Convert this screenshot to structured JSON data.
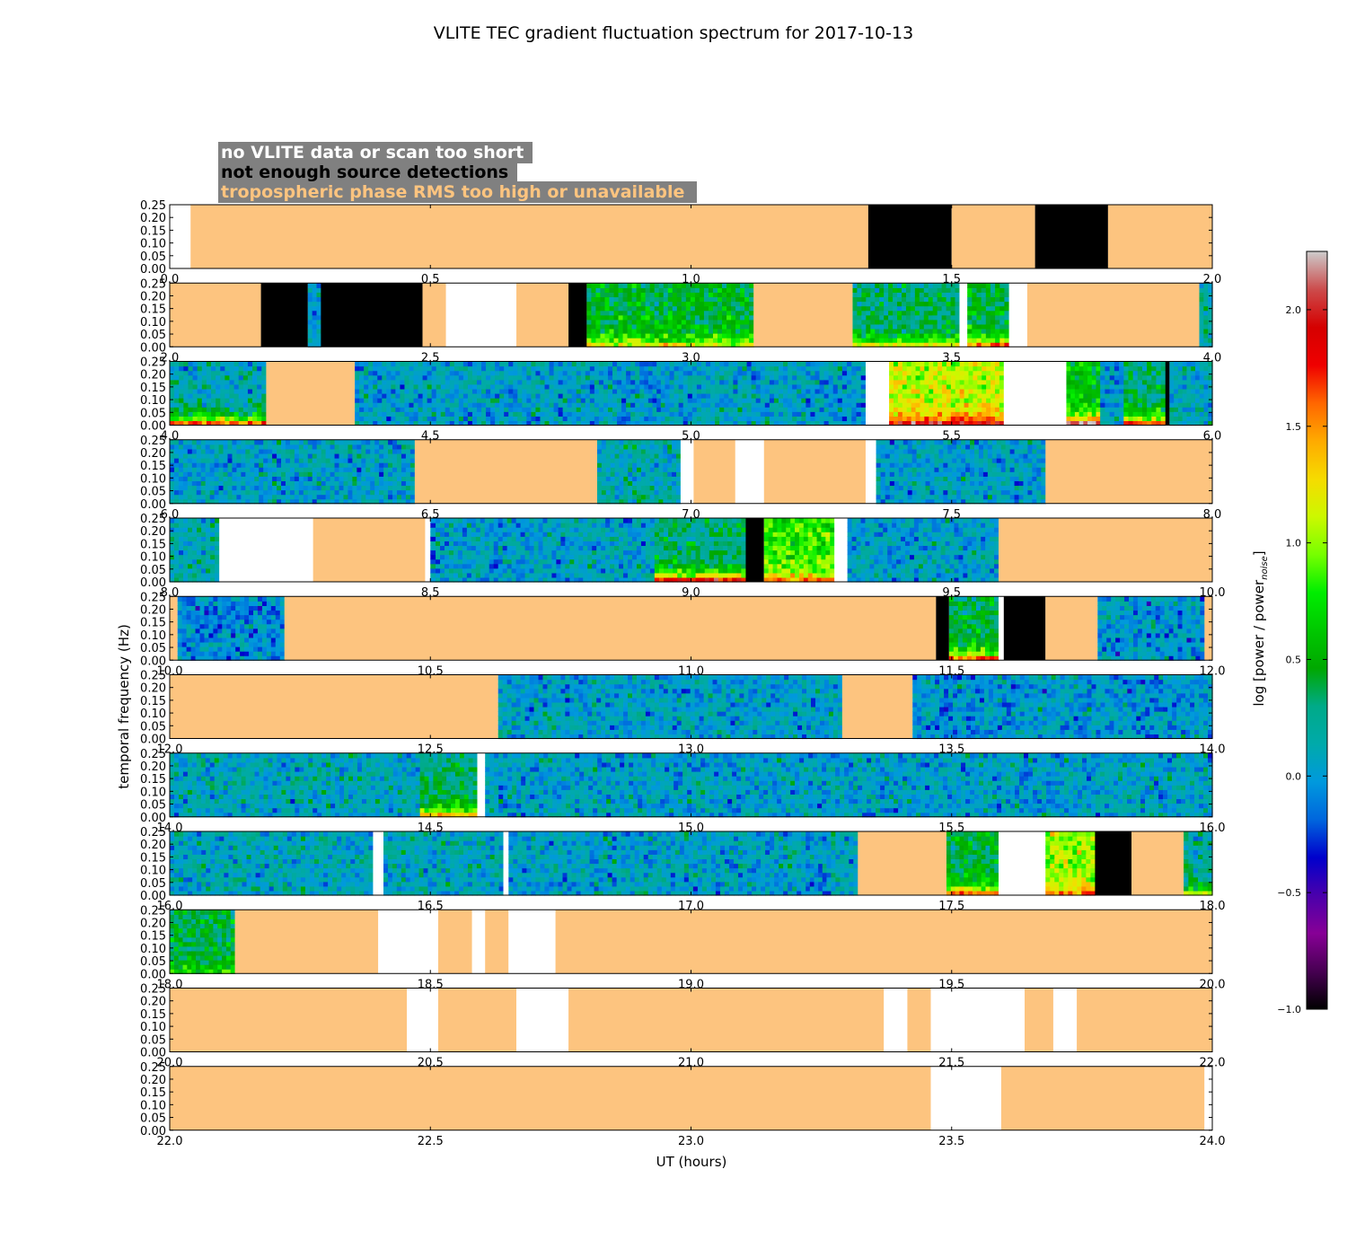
{
  "chart_data": {
    "type": "heatmap",
    "title": "VLITE TEC gradient fluctuation spectrum for 2017-10-13",
    "xlabel": "UT (hours)",
    "ylabel": "temporal frequency (Hz)",
    "ylim": [
      0,
      0.25
    ],
    "yticks": [
      "0.00",
      "0.05",
      "0.10",
      "0.15",
      "0.20",
      "0.25"
    ],
    "grid": false,
    "legend": {
      "placement": "top-left",
      "entries": [
        {
          "label": "no VLITE data or scan too short",
          "color": "#ffffff"
        },
        {
          "label": "not enough source detections",
          "color": "#000000"
        },
        {
          "label": "tropospheric phase RMS too high or unavailable",
          "color": "#fdc47f"
        }
      ]
    },
    "colorbar": {
      "label_main": "log [power / power",
      "label_sub": "noise",
      "label_close": "]",
      "range": [
        -1.0,
        2.25
      ],
      "ticks": [
        "−1.0",
        "−0.5",
        "0.0",
        "0.5",
        "1.0",
        "1.5",
        "2.0"
      ],
      "tick_values": [
        -1.0,
        -0.5,
        0.0,
        0.5,
        1.0,
        1.5,
        2.0
      ],
      "colormap": "nipy_spectral"
    },
    "colors": {
      "no_data": "#ffffff",
      "no_detections": "#000000",
      "troposphere": "#fdc47f",
      "low_power": "#1493d2"
    },
    "panels": [
      {
        "xrange": [
          0,
          2
        ],
        "xticks": [
          "0.0",
          "0.5",
          "1.0",
          "1.5",
          "2.0"
        ],
        "segments": [
          {
            "t0": 0.0,
            "t1": 0.04,
            "kind": "nodata"
          },
          {
            "t0": 0.04,
            "t1": 1.34,
            "kind": "tropo"
          },
          {
            "t0": 1.34,
            "t1": 1.5,
            "kind": "nodet"
          },
          {
            "t0": 1.5,
            "t1": 1.66,
            "kind": "tropo"
          },
          {
            "t0": 1.66,
            "t1": 1.8,
            "kind": "nodet"
          },
          {
            "t0": 1.8,
            "t1": 2.0,
            "kind": "tropo"
          }
        ]
      },
      {
        "xrange": [
          2,
          4
        ],
        "xticks": [
          "2.0",
          "2.5",
          "3.0",
          "3.5",
          "4.0"
        ],
        "segments": [
          {
            "t0": 2.0,
            "t1": 2.175,
            "kind": "tropo"
          },
          {
            "t0": 2.175,
            "t1": 2.265,
            "kind": "nodet"
          },
          {
            "t0": 2.265,
            "t1": 2.29,
            "kind": "data",
            "level": 0.0
          },
          {
            "t0": 2.29,
            "t1": 2.485,
            "kind": "nodet"
          },
          {
            "t0": 2.485,
            "t1": 2.53,
            "kind": "tropo"
          },
          {
            "t0": 2.53,
            "t1": 2.665,
            "kind": "nodata"
          },
          {
            "t0": 2.665,
            "t1": 2.765,
            "kind": "tropo"
          },
          {
            "t0": 2.765,
            "t1": 2.8,
            "kind": "nodet"
          },
          {
            "t0": 2.8,
            "t1": 3.12,
            "kind": "data",
            "level": 0.45,
            "bottom": 1.2
          },
          {
            "t0": 3.12,
            "t1": 3.31,
            "kind": "tropo"
          },
          {
            "t0": 3.31,
            "t1": 3.515,
            "kind": "data",
            "level": 0.3,
            "bottom": 1.1
          },
          {
            "t0": 3.515,
            "t1": 3.53,
            "kind": "nodata"
          },
          {
            "t0": 3.53,
            "t1": 3.61,
            "kind": "data",
            "level": 0.4,
            "bottom": 1.5
          },
          {
            "t0": 3.61,
            "t1": 3.645,
            "kind": "nodata"
          },
          {
            "t0": 3.645,
            "t1": 3.975,
            "kind": "tropo"
          },
          {
            "t0": 3.975,
            "t1": 4.0,
            "kind": "data",
            "level": 0.2
          }
        ]
      },
      {
        "xrange": [
          4,
          6
        ],
        "xticks": [
          "4.0",
          "4.5",
          "5.0",
          "5.5",
          "6.0"
        ],
        "segments": [
          {
            "t0": 4.0,
            "t1": 4.185,
            "kind": "data",
            "level": 0.1,
            "bottom": 1.6
          },
          {
            "t0": 4.185,
            "t1": 4.355,
            "kind": "tropo"
          },
          {
            "t0": 4.355,
            "t1": 4.91,
            "kind": "data",
            "level": 0.05
          },
          {
            "t0": 4.91,
            "t1": 4.95,
            "kind": "data",
            "level": 0.0
          },
          {
            "t0": 4.95,
            "t1": 5.29,
            "kind": "data",
            "level": 0.05
          },
          {
            "t0": 5.29,
            "t1": 5.335,
            "kind": "data",
            "level": 0.0
          },
          {
            "t0": 5.335,
            "t1": 5.38,
            "kind": "nodata"
          },
          {
            "t0": 5.38,
            "t1": 5.6,
            "kind": "data",
            "level": 1.1,
            "bottom": 1.9
          },
          {
            "t0": 5.6,
            "t1": 5.72,
            "kind": "nodata"
          },
          {
            "t0": 5.72,
            "t1": 5.785,
            "kind": "data",
            "level": 0.6,
            "bottom": 2.1
          },
          {
            "t0": 5.785,
            "t1": 5.83,
            "kind": "data",
            "level": 0.0
          },
          {
            "t0": 5.83,
            "t1": 5.91,
            "kind": "data",
            "level": 0.3,
            "bottom": 1.7
          },
          {
            "t0": 5.91,
            "t1": 5.918,
            "kind": "nodet"
          },
          {
            "t0": 5.918,
            "t1": 6.0,
            "kind": "data",
            "level": 0.1
          }
        ]
      },
      {
        "xrange": [
          6,
          8
        ],
        "xticks": [
          "6.0",
          "6.5",
          "7.0",
          "7.5",
          "8.0"
        ],
        "segments": [
          {
            "t0": 6.0,
            "t1": 6.47,
            "kind": "data",
            "level": 0.05
          },
          {
            "t0": 6.47,
            "t1": 6.82,
            "kind": "tropo"
          },
          {
            "t0": 6.82,
            "t1": 6.98,
            "kind": "data",
            "level": 0.15
          },
          {
            "t0": 6.98,
            "t1": 7.005,
            "kind": "nodata"
          },
          {
            "t0": 7.005,
            "t1": 7.085,
            "kind": "tropo"
          },
          {
            "t0": 7.085,
            "t1": 7.14,
            "kind": "nodata"
          },
          {
            "t0": 7.14,
            "t1": 7.335,
            "kind": "tropo"
          },
          {
            "t0": 7.335,
            "t1": 7.355,
            "kind": "nodata"
          },
          {
            "t0": 7.355,
            "t1": 7.39,
            "kind": "data",
            "level": 0.0
          },
          {
            "t0": 7.39,
            "t1": 7.68,
            "kind": "data",
            "level": 0.05
          },
          {
            "t0": 7.68,
            "t1": 8.0,
            "kind": "tropo"
          }
        ]
      },
      {
        "xrange": [
          8,
          10
        ],
        "xticks": [
          "8.0",
          "8.5",
          "9.0",
          "9.5",
          "10.0"
        ],
        "segments": [
          {
            "t0": 8.0,
            "t1": 8.095,
            "kind": "data",
            "level": 0.15
          },
          {
            "t0": 8.095,
            "t1": 8.275,
            "kind": "nodata"
          },
          {
            "t0": 8.275,
            "t1": 8.49,
            "kind": "tropo"
          },
          {
            "t0": 8.49,
            "t1": 8.5,
            "kind": "nodata"
          },
          {
            "t0": 8.5,
            "t1": 8.51,
            "kind": "data",
            "level": 0.0
          },
          {
            "t0": 8.51,
            "t1": 8.93,
            "kind": "data",
            "level": 0.05
          },
          {
            "t0": 8.93,
            "t1": 9.105,
            "kind": "data",
            "level": 0.3,
            "bottom": 1.8
          },
          {
            "t0": 9.105,
            "t1": 9.14,
            "kind": "nodet"
          },
          {
            "t0": 9.14,
            "t1": 9.275,
            "kind": "data",
            "level": 0.8,
            "bottom": 1.5
          },
          {
            "t0": 9.275,
            "t1": 9.3,
            "kind": "nodata"
          },
          {
            "t0": 9.3,
            "t1": 9.59,
            "kind": "data",
            "level": 0.05
          },
          {
            "t0": 9.59,
            "t1": 10.0,
            "kind": "tropo"
          }
        ]
      },
      {
        "xrange": [
          10,
          12
        ],
        "xticks": [
          "10.0",
          "10.5",
          "11.0",
          "11.5",
          "12.0"
        ],
        "segments": [
          {
            "t0": 10.0,
            "t1": 10.015,
            "kind": "tropo"
          },
          {
            "t0": 10.015,
            "t1": 10.22,
            "kind": "data",
            "level": -0.05
          },
          {
            "t0": 10.22,
            "t1": 11.47,
            "kind": "tropo"
          },
          {
            "t0": 11.47,
            "t1": 11.495,
            "kind": "nodet"
          },
          {
            "t0": 11.495,
            "t1": 11.59,
            "kind": "data",
            "level": 0.4,
            "bottom": 1.5
          },
          {
            "t0": 11.59,
            "t1": 11.6,
            "kind": "nodata"
          },
          {
            "t0": 11.6,
            "t1": 11.68,
            "kind": "nodet"
          },
          {
            "t0": 11.68,
            "t1": 11.78,
            "kind": "tropo"
          },
          {
            "t0": 11.78,
            "t1": 11.985,
            "kind": "data",
            "level": 0.0
          },
          {
            "t0": 11.985,
            "t1": 12.0,
            "kind": "tropo"
          }
        ]
      },
      {
        "xrange": [
          12,
          14
        ],
        "xticks": [
          "12.0",
          "12.5",
          "13.0",
          "13.5",
          "14.0"
        ],
        "segments": [
          {
            "t0": 12.0,
            "t1": 12.63,
            "kind": "tropo"
          },
          {
            "t0": 12.63,
            "t1": 13.29,
            "kind": "data",
            "level": 0.05
          },
          {
            "t0": 13.29,
            "t1": 13.425,
            "kind": "tropo"
          },
          {
            "t0": 13.425,
            "t1": 14.0,
            "kind": "data",
            "level": 0.0
          }
        ]
      },
      {
        "xrange": [
          14,
          16
        ],
        "xticks": [
          "14.0",
          "14.5",
          "15.0",
          "15.5",
          "16.0"
        ],
        "segments": [
          {
            "t0": 14.0,
            "t1": 14.48,
            "kind": "data",
            "level": 0.1
          },
          {
            "t0": 14.48,
            "t1": 14.59,
            "kind": "data",
            "level": 0.3,
            "bottom": 1.4
          },
          {
            "t0": 14.59,
            "t1": 14.605,
            "kind": "nodata"
          },
          {
            "t0": 14.605,
            "t1": 16.0,
            "kind": "data",
            "level": 0.05
          }
        ]
      },
      {
        "xrange": [
          16,
          18
        ],
        "xticks": [
          "16.0",
          "16.5",
          "17.0",
          "17.5",
          "18.0"
        ],
        "segments": [
          {
            "t0": 16.0,
            "t1": 16.39,
            "kind": "data",
            "level": 0.1
          },
          {
            "t0": 16.39,
            "t1": 16.41,
            "kind": "nodata"
          },
          {
            "t0": 16.41,
            "t1": 16.64,
            "kind": "data",
            "level": 0.1
          },
          {
            "t0": 16.64,
            "t1": 16.65,
            "kind": "nodata"
          },
          {
            "t0": 16.65,
            "t1": 17.22,
            "kind": "data",
            "level": 0.05
          },
          {
            "t0": 17.22,
            "t1": 17.26,
            "kind": "data",
            "level": 0.0
          },
          {
            "t0": 17.26,
            "t1": 17.32,
            "kind": "data",
            "level": 0.1
          },
          {
            "t0": 17.32,
            "t1": 17.49,
            "kind": "tropo"
          },
          {
            "t0": 17.49,
            "t1": 17.59,
            "kind": "data",
            "level": 0.4,
            "bottom": 1.6
          },
          {
            "t0": 17.59,
            "t1": 17.68,
            "kind": "nodata"
          },
          {
            "t0": 17.68,
            "t1": 17.775,
            "kind": "data",
            "level": 1.0,
            "bottom": 1.6
          },
          {
            "t0": 17.775,
            "t1": 17.845,
            "kind": "nodet"
          },
          {
            "t0": 17.845,
            "t1": 17.945,
            "kind": "tropo"
          },
          {
            "t0": 17.945,
            "t1": 18.0,
            "kind": "data",
            "level": 0.2,
            "bottom": 1.0
          }
        ]
      },
      {
        "xrange": [
          18,
          20
        ],
        "xticks": [
          "18.0",
          "18.5",
          "19.0",
          "19.5",
          "20.0"
        ],
        "segments": [
          {
            "t0": 18.0,
            "t1": 18.125,
            "kind": "data",
            "level": 0.4,
            "bottom": 0.8
          },
          {
            "t0": 18.125,
            "t1": 18.4,
            "kind": "tropo"
          },
          {
            "t0": 18.4,
            "t1": 18.515,
            "kind": "nodata"
          },
          {
            "t0": 18.515,
            "t1": 18.58,
            "kind": "tropo"
          },
          {
            "t0": 18.58,
            "t1": 18.605,
            "kind": "nodata"
          },
          {
            "t0": 18.605,
            "t1": 18.65,
            "kind": "tropo"
          },
          {
            "t0": 18.65,
            "t1": 18.74,
            "kind": "nodata"
          },
          {
            "t0": 18.74,
            "t1": 20.0,
            "kind": "tropo"
          }
        ]
      },
      {
        "xrange": [
          20,
          22
        ],
        "xticks": [
          "20.0",
          "20.5",
          "21.0",
          "21.5",
          "22.0"
        ],
        "segments": [
          {
            "t0": 20.0,
            "t1": 20.455,
            "kind": "tropo"
          },
          {
            "t0": 20.455,
            "t1": 20.515,
            "kind": "nodata"
          },
          {
            "t0": 20.515,
            "t1": 20.665,
            "kind": "tropo"
          },
          {
            "t0": 20.665,
            "t1": 20.765,
            "kind": "nodata"
          },
          {
            "t0": 20.765,
            "t1": 21.37,
            "kind": "tropo"
          },
          {
            "t0": 21.37,
            "t1": 21.415,
            "kind": "nodata"
          },
          {
            "t0": 21.415,
            "t1": 21.46,
            "kind": "tropo"
          },
          {
            "t0": 21.46,
            "t1": 21.64,
            "kind": "nodata"
          },
          {
            "t0": 21.64,
            "t1": 21.695,
            "kind": "tropo"
          },
          {
            "t0": 21.695,
            "t1": 21.74,
            "kind": "nodata"
          },
          {
            "t0": 21.74,
            "t1": 22.0,
            "kind": "tropo"
          }
        ]
      },
      {
        "xrange": [
          22,
          24
        ],
        "xticks": [
          "22.0",
          "22.5",
          "23.0",
          "23.5",
          "24.0"
        ],
        "segments": [
          {
            "t0": 22.0,
            "t1": 23.46,
            "kind": "tropo"
          },
          {
            "t0": 23.46,
            "t1": 23.595,
            "kind": "nodata"
          },
          {
            "t0": 23.595,
            "t1": 23.985,
            "kind": "tropo"
          },
          {
            "t0": 23.985,
            "t1": 24.0,
            "kind": "nodata"
          }
        ]
      }
    ]
  }
}
